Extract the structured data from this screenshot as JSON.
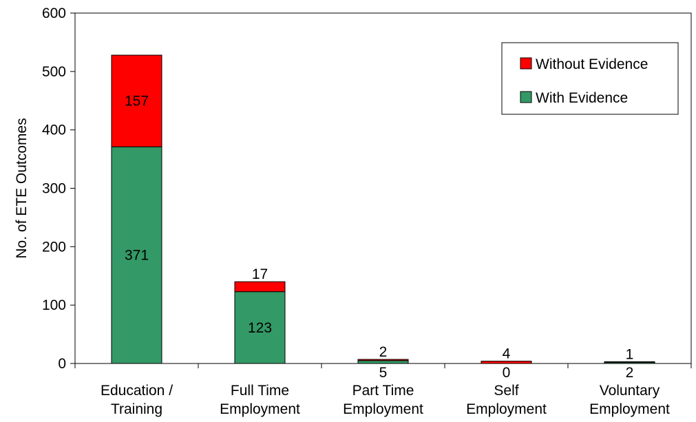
{
  "chart_data": {
    "type": "bar",
    "stacked": true,
    "categories": [
      [
        "Education /",
        "Training"
      ],
      [
        "Full Time",
        "Employment"
      ],
      [
        "Part Time",
        "Employment"
      ],
      [
        "Self",
        "Employment"
      ],
      [
        "Voluntary",
        "Employment"
      ]
    ],
    "series": [
      {
        "name": "With Evidence",
        "color": "#339966",
        "values": [
          371,
          123,
          5,
          0,
          2
        ]
      },
      {
        "name": "Without Evidence",
        "color": "#ff0000",
        "values": [
          157,
          17,
          2,
          4,
          1
        ]
      }
    ],
    "ylabel": "No. of ETE Outcomes",
    "ylim": [
      0,
      600
    ],
    "yticks": [
      "0",
      "100",
      "200",
      "300",
      "400",
      "500",
      "600"
    ],
    "grid": false,
    "legend_position": "top-right"
  }
}
